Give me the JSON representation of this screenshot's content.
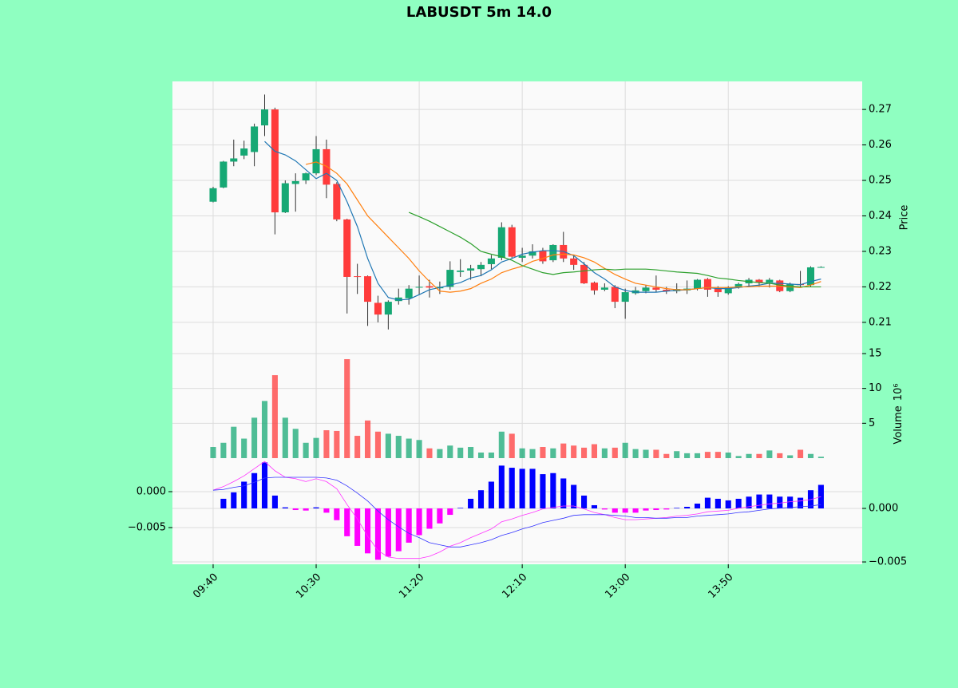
{
  "chart_data": [
    {
      "type": "candlestick",
      "title": "LABUSDT 5m 14.0",
      "ylabel": "Price",
      "xlim": [
        -3.95,
        63.0
      ],
      "ylim": [
        0.2012,
        0.2779
      ],
      "yticks": [
        0.21,
        0.22,
        0.23,
        0.24,
        0.25,
        0.26,
        0.27
      ],
      "grid": true,
      "up_color": "#16a874",
      "down_color": "#ff3b3b",
      "candles": {
        "open": [
          0.244,
          0.248,
          0.2553,
          0.257,
          0.258,
          0.2655,
          0.27,
          0.241,
          0.249,
          0.25,
          0.252,
          0.2588,
          0.249,
          0.239,
          0.223,
          0.223,
          0.2155,
          0.2122,
          0.216,
          0.2168,
          0.2198,
          0.2202,
          0.2196,
          0.22,
          0.2242,
          0.2246,
          0.225,
          0.2264,
          0.2282,
          0.2368,
          0.2282,
          0.2288,
          0.2302,
          0.2275,
          0.2318,
          0.228,
          0.2262,
          0.2212,
          0.2192,
          0.22,
          0.2158,
          0.2182,
          0.2188,
          0.2198,
          0.2192,
          0.2188,
          0.219,
          0.2195,
          0.2222,
          0.2195,
          0.2182,
          0.2198,
          0.221,
          0.222,
          0.2212,
          0.2218,
          0.2188,
          0.2208,
          0.2205,
          0.2255
        ],
        "high": [
          0.2482,
          0.2555,
          0.2615,
          0.2612,
          0.266,
          0.2742,
          0.2705,
          0.25,
          0.252,
          0.2522,
          0.2625,
          0.2615,
          0.2495,
          0.2392,
          0.2265,
          0.2232,
          0.2175,
          0.2162,
          0.2195,
          0.2205,
          0.2232,
          0.222,
          0.2215,
          0.2272,
          0.2278,
          0.2262,
          0.227,
          0.229,
          0.2382,
          0.2375,
          0.231,
          0.232,
          0.231,
          0.232,
          0.2355,
          0.229,
          0.227,
          0.2215,
          0.221,
          0.2205,
          0.2195,
          0.22,
          0.2205,
          0.2232,
          0.22,
          0.221,
          0.2218,
          0.2222,
          0.2225,
          0.2202,
          0.2202,
          0.2212,
          0.2225,
          0.2222,
          0.2225,
          0.222,
          0.2212,
          0.2245,
          0.2258,
          0.2258
        ],
        "low": [
          0.2438,
          0.2478,
          0.254,
          0.256,
          0.254,
          0.2625,
          0.2348,
          0.2408,
          0.2412,
          0.249,
          0.2515,
          0.245,
          0.2385,
          0.2125,
          0.218,
          0.209,
          0.21,
          0.208,
          0.215,
          0.215,
          0.2178,
          0.217,
          0.218,
          0.2192,
          0.2228,
          0.222,
          0.223,
          0.225,
          0.2275,
          0.228,
          0.227,
          0.228,
          0.2265,
          0.227,
          0.227,
          0.2248,
          0.2208,
          0.2178,
          0.2188,
          0.214,
          0.211,
          0.2178,
          0.2182,
          0.2185,
          0.218,
          0.2182,
          0.218,
          0.219,
          0.2172,
          0.2172,
          0.2178,
          0.2195,
          0.22,
          0.22,
          0.2198,
          0.2185,
          0.2185,
          0.22,
          0.22,
          0.2254
        ],
        "close": [
          0.2478,
          0.2553,
          0.2562,
          0.259,
          0.2652,
          0.27,
          0.241,
          0.2492,
          0.2498,
          0.252,
          0.2588,
          0.2488,
          0.239,
          0.2228,
          0.2228,
          0.2158,
          0.2122,
          0.2158,
          0.217,
          0.2195,
          0.22,
          0.2198,
          0.22,
          0.2248,
          0.2246,
          0.2252,
          0.2262,
          0.228,
          0.2368,
          0.2285,
          0.2288,
          0.23,
          0.2272,
          0.2318,
          0.228,
          0.2262,
          0.221,
          0.219,
          0.2198,
          0.2158,
          0.2185,
          0.219,
          0.2198,
          0.2192,
          0.2188,
          0.2194,
          0.2195,
          0.222,
          0.2192,
          0.2185,
          0.2198,
          0.2208,
          0.222,
          0.2212,
          0.222,
          0.2188,
          0.2208,
          0.2205,
          0.2255,
          0.2256
        ]
      },
      "series": [
        {
          "color": "#1f77b4",
          "values": [
            null,
            null,
            null,
            null,
            null,
            0.261,
            0.2582,
            0.2572,
            0.2555,
            0.253,
            0.2505,
            0.252,
            0.25,
            0.244,
            0.237,
            0.228,
            0.221,
            0.217,
            0.2163,
            0.2165,
            0.2178,
            0.2192,
            0.2198,
            0.2205,
            0.2212,
            0.2225,
            0.2232,
            0.2248,
            0.227,
            0.228,
            0.2292,
            0.2298,
            0.2302,
            0.2302,
            0.23,
            0.2288,
            0.2265,
            0.224,
            0.2222,
            0.22,
            0.219,
            0.2185,
            0.2185,
            0.2185,
            0.2188,
            0.219,
            0.2192,
            0.2195,
            0.2198,
            0.2195,
            0.2195,
            0.2198,
            0.2202,
            0.2205,
            0.221,
            0.221,
            0.2208,
            0.2206,
            0.2215,
            0.2222
          ]
        },
        {
          "color": "#ff7f0e",
          "values": [
            null,
            null,
            null,
            null,
            null,
            null,
            null,
            null,
            null,
            0.2545,
            0.2552,
            0.254,
            0.252,
            0.249,
            0.2445,
            0.24,
            0.237,
            0.234,
            0.231,
            0.228,
            0.2245,
            0.2215,
            0.2188,
            0.2185,
            0.2188,
            0.2195,
            0.221,
            0.2222,
            0.224,
            0.225,
            0.2258,
            0.2272,
            0.228,
            0.229,
            0.2292,
            0.229,
            0.2282,
            0.227,
            0.2252,
            0.2235,
            0.2222,
            0.221,
            0.2205,
            0.22,
            0.2195,
            0.2192,
            0.2192,
            0.2195,
            0.2198,
            0.2198,
            0.2198,
            0.22,
            0.22,
            0.2202,
            0.2202,
            0.2202,
            0.22,
            0.2198,
            0.2205,
            0.2215
          ]
        },
        {
          "color": "#2ca02c",
          "values": [
            null,
            null,
            null,
            null,
            null,
            null,
            null,
            null,
            null,
            null,
            null,
            null,
            null,
            null,
            null,
            null,
            null,
            null,
            null,
            0.241,
            0.2398,
            0.2385,
            0.237,
            0.2355,
            0.234,
            0.2322,
            0.23,
            0.2292,
            0.2285,
            0.2275,
            0.226,
            0.225,
            0.224,
            0.2235,
            0.224,
            0.2242,
            0.2245,
            0.2248,
            0.225,
            0.2248,
            0.225,
            0.225,
            0.225,
            0.2248,
            0.2245,
            0.2242,
            0.224,
            0.2238,
            0.2232,
            0.2225,
            0.2222,
            0.2218,
            0.2215,
            0.2212,
            0.221,
            0.2205,
            0.2202,
            0.22,
            0.22,
            0.22
          ]
        }
      ]
    },
    {
      "type": "volume",
      "ylabel": "Volume",
      "offset_label": "10⁶",
      "ylim": [
        -0.46,
        15
      ],
      "yticks": [
        5,
        10,
        15
      ],
      "grid": true,
      "values": [
        1.6,
        2.2,
        4.5,
        2.8,
        5.8,
        8.2,
        11.9,
        5.8,
        4.2,
        2.2,
        2.9,
        4.0,
        3.9,
        14.2,
        3.2,
        5.4,
        3.8,
        3.5,
        3.2,
        2.8,
        2.6,
        1.4,
        1.3,
        1.8,
        1.5,
        1.6,
        0.8,
        0.8,
        3.8,
        3.5,
        1.4,
        1.3,
        1.6,
        1.4,
        2.1,
        1.8,
        1.5,
        2.0,
        1.4,
        1.5,
        2.2,
        1.3,
        1.2,
        1.2,
        0.6,
        1.0,
        0.7,
        0.7,
        0.9,
        0.9,
        0.8,
        0.3,
        0.6,
        0.6,
        1.1,
        0.7,
        0.4,
        1.2,
        0.6,
        0.2
      ]
    },
    {
      "type": "macd",
      "ylim": [
        -0.01011,
        0.00422
      ],
      "yticks": [
        {
          "value": 0,
          "label": "0.000"
        },
        {
          "value": -0.005,
          "label": "−0.005"
        }
      ],
      "y2lim": [
        -0.00522,
        0.0044
      ],
      "y2ticks": [
        {
          "value": 0,
          "label": "0.000"
        },
        {
          "value": -0.005,
          "label": "−0.005"
        }
      ],
      "grid": true,
      "xticks": [
        {
          "value": 0,
          "label": "09:40"
        },
        {
          "value": 10,
          "label": "10:30"
        },
        {
          "value": 20,
          "label": "11:20"
        },
        {
          "value": 30,
          "label": "12:10"
        },
        {
          "value": 40,
          "label": "13:00"
        },
        {
          "value": 50,
          "label": "13:50"
        }
      ],
      "pos_color": "#0000ff",
      "neg_color": "#ff00ff",
      "histogram": {
        "axis": "y2",
        "values": [
          0,
          0.0009,
          0.0015,
          0.0025,
          0.0033,
          0.0043,
          0.0012,
          0.0001,
          -0.00015,
          -0.0002,
          0.0001,
          -0.0004,
          -0.0011,
          -0.0026,
          -0.0035,
          -0.0042,
          -0.0048,
          -0.0045,
          -0.004,
          -0.0032,
          -0.0025,
          -0.0019,
          -0.0014,
          -0.0006,
          5e-05,
          0.0009,
          0.0017,
          0.0025,
          0.004,
          0.0038,
          0.0037,
          0.0037,
          0.0032,
          0.0033,
          0.0028,
          0.0022,
          0.0012,
          0.0003,
          -0.0001,
          -0.0004,
          -0.0004,
          -0.0004,
          -0.0002,
          -0.00015,
          -0.0001,
          5e-05,
          0.00015,
          0.00045,
          0.001,
          0.0009,
          0.00075,
          0.0009,
          0.0011,
          0.0013,
          0.0013,
          0.0011,
          0.0011,
          0.001,
          0.0017,
          0.0022
        ]
      },
      "series": [
        {
          "color": "#ff33ff",
          "values": [
            0.0002,
            0.0007,
            0.0014,
            0.0022,
            0.0032,
            0.0042,
            0.0029,
            0.002,
            0.0018,
            0.0014,
            0.0018,
            0.0014,
            0.0004,
            -0.0018,
            -0.0038,
            -0.0062,
            -0.0082,
            -0.0091,
            -0.0093,
            -0.0093,
            -0.0093,
            -0.009,
            -0.0084,
            -0.0076,
            -0.0071,
            -0.0064,
            -0.0058,
            -0.0052,
            -0.0042,
            -0.0038,
            -0.0033,
            -0.0029,
            -0.0024,
            -0.0022,
            -0.002,
            -0.002,
            -0.0024,
            -0.0029,
            -0.0032,
            -0.0036,
            -0.0039,
            -0.0039,
            -0.0038,
            -0.0037,
            -0.0036,
            -0.0034,
            -0.0033,
            -0.0031,
            -0.0028,
            -0.0027,
            -0.0026,
            -0.0023,
            -0.0021,
            -0.0019,
            -0.0017,
            -0.0016,
            -0.0014,
            -0.0013,
            -0.0011,
            -0.0007
          ]
        },
        {
          "color": "#3333ff",
          "values": [
            0.0002,
            0.0003,
            0.0006,
            0.0008,
            0.0013,
            0.0019,
            0.002,
            0.002,
            0.002,
            0.002,
            0.002,
            0.0019,
            0.0016,
            0.0008,
            -0.0002,
            -0.0013,
            -0.0027,
            -0.0039,
            -0.0049,
            -0.0058,
            -0.0064,
            -0.0071,
            -0.0074,
            -0.0077,
            -0.0077,
            -0.0074,
            -0.0071,
            -0.0067,
            -0.0061,
            -0.0057,
            -0.0052,
            -0.0048,
            -0.0043,
            -0.004,
            -0.0037,
            -0.0033,
            -0.0032,
            -0.0032,
            -0.0032,
            -0.0033,
            -0.0034,
            -0.0036,
            -0.0036,
            -0.0037,
            -0.0037,
            -0.0036,
            -0.0036,
            -0.0034,
            -0.0033,
            -0.0032,
            -0.0031,
            -0.0029,
            -0.0028,
            -0.0026,
            -0.0024,
            -0.0023,
            -0.0022,
            -0.0021,
            -0.002,
            -0.0018
          ]
        }
      ]
    }
  ]
}
